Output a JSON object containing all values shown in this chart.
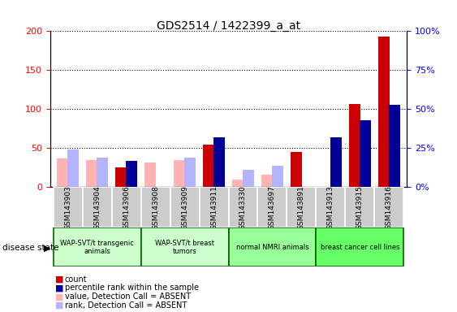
{
  "title": "GDS2514 / 1422399_a_at",
  "samples": [
    "GSM143903",
    "GSM143904",
    "GSM143906",
    "GSM143908",
    "GSM143909",
    "GSM143911",
    "GSM143330",
    "GSM143697",
    "GSM143891",
    "GSM143913",
    "GSM143915",
    "GSM143916"
  ],
  "count": [
    0,
    0,
    25,
    0,
    0,
    55,
    0,
    0,
    45,
    0,
    107,
    193
  ],
  "value_absent": [
    37,
    35,
    0,
    32,
    35,
    0,
    10,
    16,
    0,
    0,
    0,
    0
  ],
  "rank": [
    0,
    0,
    17,
    0,
    0,
    32,
    0,
    0,
    0,
    32,
    43,
    53
  ],
  "rank_absent": [
    24,
    19,
    0,
    0,
    19,
    0,
    11,
    14,
    0,
    0,
    0,
    0
  ],
  "ylim_left": [
    0,
    200
  ],
  "ylim_right": [
    0,
    100
  ],
  "yticks_left": [
    0,
    50,
    100,
    150,
    200
  ],
  "yticks_right": [
    0,
    25,
    50,
    75,
    100
  ],
  "ytick_labels_left": [
    "0",
    "50",
    "100",
    "150",
    "200"
  ],
  "ytick_labels_right": [
    "0%",
    "25%",
    "50%",
    "75%",
    "100%"
  ],
  "color_count": "#cc0000",
  "color_rank": "#000099",
  "color_value_absent": "#ffb3b3",
  "color_rank_absent": "#b3b3ff",
  "bar_width": 0.4,
  "legend_items": [
    {
      "color": "#cc0000",
      "label": "count"
    },
    {
      "color": "#000099",
      "label": "percentile rank within the sample"
    },
    {
      "color": "#ffb3b3",
      "label": "value, Detection Call = ABSENT"
    },
    {
      "color": "#b3b3ff",
      "label": "rank, Detection Call = ABSENT"
    }
  ],
  "disease_state_label": "disease state",
  "group_ranges": [
    [
      0,
      2,
      "WAP-SVT/t transgenic\nanimals",
      "#ccffcc"
    ],
    [
      3,
      5,
      "WAP-SVT/t breast\ntumors",
      "#ccffcc"
    ],
    [
      6,
      8,
      "normal NMRI animals",
      "#99ff99"
    ],
    [
      9,
      11,
      "breast cancer cell lines",
      "#66ff66"
    ]
  ],
  "group_border_color": "#006600"
}
